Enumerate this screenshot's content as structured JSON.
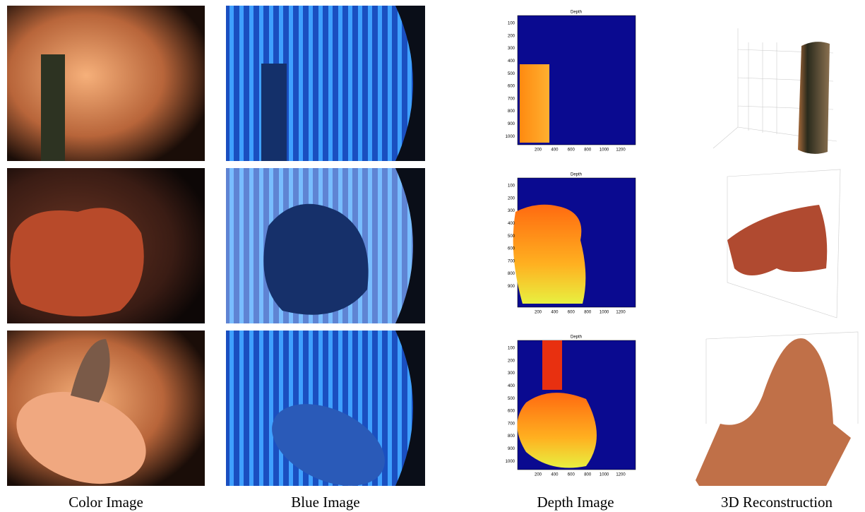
{
  "captions": [
    "Color Image",
    "Blue Image",
    "Depth Image",
    "3D Reconstruction"
  ],
  "depth_plots": [
    {
      "title": "Depth",
      "yticks": [
        100,
        200,
        300,
        400,
        500,
        600,
        700,
        800,
        900,
        1000
      ],
      "xticks": [
        200,
        400,
        600,
        800,
        1000,
        1200
      ]
    },
    {
      "title": "Depth",
      "yticks": [
        100,
        200,
        300,
        400,
        500,
        600,
        700,
        800,
        900
      ],
      "xticks": [
        200,
        400,
        600,
        800,
        1000,
        1200
      ]
    },
    {
      "title": "Depth",
      "yticks": [
        100,
        200,
        300,
        400,
        500,
        600,
        700,
        800,
        900,
        1000
      ],
      "xticks": [
        200,
        400,
        600,
        800,
        1000,
        1200
      ]
    }
  ]
}
